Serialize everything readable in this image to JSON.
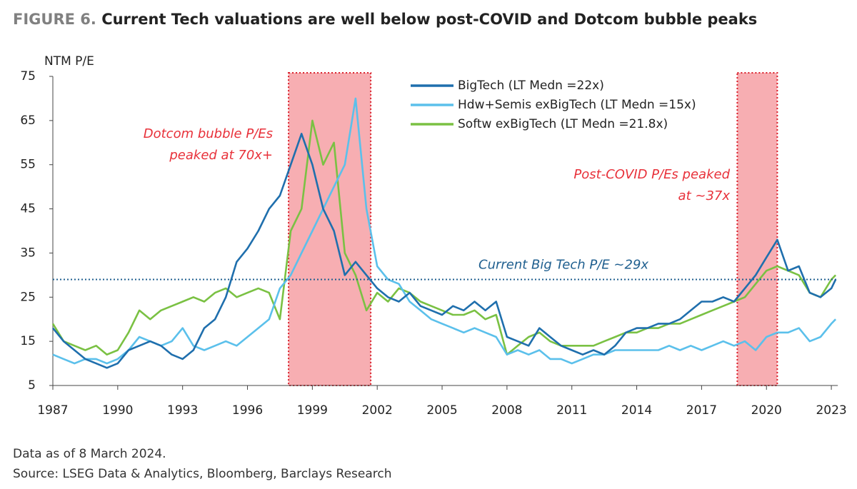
{
  "chart_data": {
    "type": "line",
    "figure_label": "FIGURE 6.",
    "title": "Current Tech valuations are well below post-COVID and Dotcom bubble peaks",
    "y_label": "NTM P/E",
    "x": [
      1987,
      1987.5,
      1988,
      1988.5,
      1989,
      1989.5,
      1990,
      1990.5,
      1991,
      1991.5,
      1992,
      1992.5,
      1993,
      1993.5,
      1994,
      1994.5,
      1995,
      1995.5,
      1996,
      1996.5,
      1997,
      1997.5,
      1998,
      1998.5,
      1999,
      1999.5,
      2000,
      2000.5,
      2001,
      2001.5,
      2002,
      2002.5,
      2003,
      2003.5,
      2004,
      2004.5,
      2005,
      2005.5,
      2006,
      2006.5,
      2007,
      2007.5,
      2008,
      2008.5,
      2009,
      2009.5,
      2010,
      2010.5,
      2011,
      2011.5,
      2012,
      2012.5,
      2013,
      2013.5,
      2014,
      2014.5,
      2015,
      2015.5,
      2016,
      2016.5,
      2017,
      2017.5,
      2018,
      2018.5,
      2019,
      2019.5,
      2020,
      2020.5,
      2021,
      2021.5,
      2022,
      2022.5,
      2023,
      2023.2
    ],
    "series": [
      {
        "name": "BigTech (LT Medn =22x)",
        "color": "#1f6fad",
        "values": [
          18,
          15,
          13,
          11,
          10,
          9,
          10,
          13,
          14,
          15,
          14,
          12,
          11,
          13,
          18,
          20,
          25,
          33,
          36,
          40,
          45,
          48,
          55,
          62,
          55,
          45,
          40,
          30,
          33,
          30,
          27,
          25,
          24,
          26,
          23,
          22,
          21,
          23,
          22,
          24,
          22,
          24,
          16,
          15,
          14,
          18,
          16,
          14,
          13,
          12,
          13,
          12,
          14,
          17,
          18,
          18,
          19,
          19,
          20,
          22,
          24,
          24,
          25,
          24,
          27,
          30,
          34,
          38,
          31,
          32,
          26,
          25,
          27,
          29
        ]
      },
      {
        "name": "Hdw+Semis exBigTech (LT Medn =15x)",
        "color": "#5bc0eb",
        "values": [
          12,
          11,
          10,
          11,
          11,
          10,
          11,
          13,
          16,
          15,
          14,
          15,
          18,
          14,
          13,
          14,
          15,
          14,
          16,
          18,
          20,
          27,
          30,
          35,
          40,
          45,
          50,
          55,
          70,
          45,
          32,
          29,
          28,
          24,
          22,
          20,
          19,
          18,
          17,
          18,
          17,
          16,
          12,
          13,
          12,
          13,
          11,
          11,
          10,
          11,
          12,
          12,
          13,
          13,
          13,
          13,
          13,
          14,
          13,
          14,
          13,
          14,
          15,
          14,
          15,
          13,
          16,
          17,
          17,
          18,
          15,
          16,
          19,
          20
        ]
      },
      {
        "name": "Softw exBigTech (LT Medn =21.8x)",
        "color": "#7ac143",
        "values": [
          19,
          15,
          14,
          13,
          14,
          12,
          13,
          17,
          22,
          20,
          22,
          23,
          24,
          25,
          24,
          26,
          27,
          25,
          26,
          27,
          26,
          20,
          40,
          45,
          65,
          55,
          60,
          35,
          30,
          22,
          26,
          24,
          27,
          26,
          24,
          23,
          22,
          21,
          21,
          22,
          20,
          21,
          12,
          14,
          16,
          17,
          15,
          14,
          14,
          14,
          14,
          15,
          16,
          17,
          17,
          18,
          18,
          19,
          19,
          20,
          21,
          22,
          23,
          24,
          25,
          28,
          31,
          32,
          31,
          30,
          26,
          25,
          29,
          30
        ]
      }
    ],
    "xlim": [
      1987,
      2023.3
    ],
    "xticks": [
      1987,
      1990,
      1993,
      1996,
      1999,
      2002,
      2005,
      2008,
      2011,
      2014,
      2017,
      2020,
      2023
    ],
    "ylim": [
      5,
      75
    ],
    "yticks": [
      5,
      15,
      25,
      35,
      45,
      55,
      65,
      75
    ],
    "shaded_regions": [
      [
        1997.9,
        2001.7
      ],
      [
        2018.65,
        2020.5
      ]
    ],
    "reference_line": {
      "value": 29,
      "label": "Current Big Tech P/E ~29x"
    },
    "annotations": [
      {
        "lines": [
          "Dotcom bubble P/Es",
          "peaked at 70x+"
        ]
      },
      {
        "lines": [
          "Post-COVID P/Es peaked",
          "at ~37x"
        ]
      }
    ],
    "notes": [
      "Data as of 8 March 2024.",
      "Source: LSEG Data & Analytics, Bloomberg, Barclays Research"
    ]
  }
}
